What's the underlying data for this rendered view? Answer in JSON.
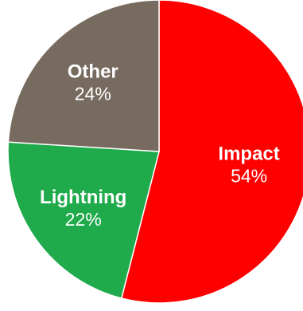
{
  "chart_data": {
    "type": "pie",
    "title": "",
    "slices": [
      {
        "label": "Impact",
        "value": 54,
        "display": "54%",
        "color": "#ff0000"
      },
      {
        "label": "Lightning",
        "value": 22,
        "display": "22%",
        "color": "#1faa4b"
      },
      {
        "label": "Other",
        "value": 24,
        "display": "24%",
        "color": "#776b60"
      }
    ],
    "start_angle_deg": 0,
    "direction": "clockwise",
    "label_color": "#ffffff",
    "slice_border_color": "#ffffff",
    "legend": "none"
  }
}
